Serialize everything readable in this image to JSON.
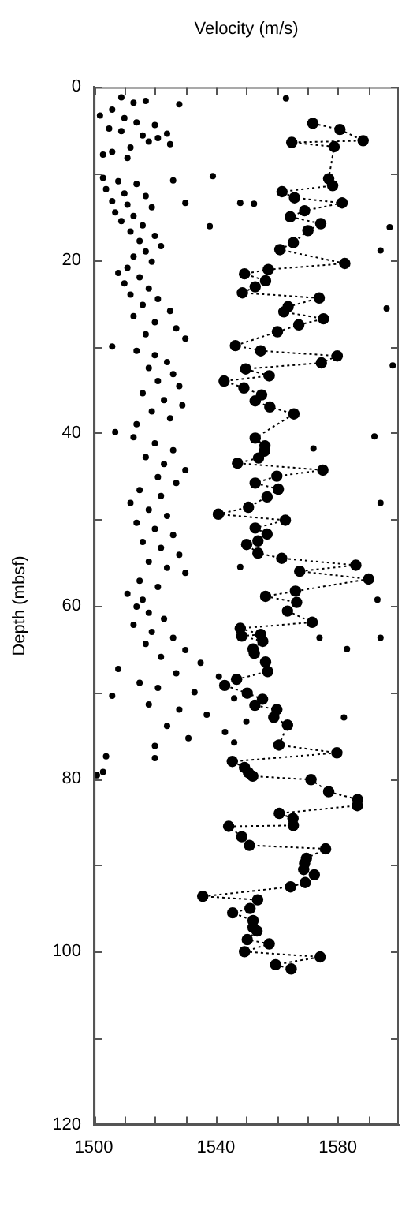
{
  "chart_data": {
    "type": "scatter",
    "xlabel": "Velocity (m/s)",
    "ylabel": "Depth (mbsf)",
    "xlim": [
      1500,
      1600
    ],
    "ylim": [
      120,
      0
    ],
    "xticks": [
      1500,
      {
        "value": 1510,
        "label": null
      },
      {
        "value": 1520,
        "label": null
      },
      {
        "value": 1530,
        "label": null
      },
      1540,
      {
        "value": 1550,
        "label": null
      },
      {
        "value": 1560,
        "label": null
      },
      {
        "value": 1570,
        "label": null
      },
      1580,
      {
        "value": 1590,
        "label": null
      }
    ],
    "yticks": [
      0,
      {
        "value": 10,
        "label": null
      },
      20,
      {
        "value": 30,
        "label": null
      },
      40,
      {
        "value": 50,
        "label": null
      },
      60,
      {
        "value": 70,
        "label": null
      },
      80,
      {
        "value": 90,
        "label": null
      },
      100,
      {
        "value": 110,
        "label": null
      },
      120
    ],
    "grid": false,
    "legend": false,
    "marker": "circle",
    "series": [
      {
        "color": "#000000",
        "x": [
          1509,
          1513,
          1517,
          1528,
          1506,
          1502,
          1510,
          1514,
          1520,
          1505,
          1509,
          1516,
          1521,
          1524,
          1518,
          1525,
          1512,
          1506,
          1503,
          1511,
          1503,
          1508,
          1514,
          1526,
          1504,
          1510,
          1517,
          1506,
          1511,
          1519,
          1507,
          1513,
          1509,
          1516,
          1512,
          1520,
          1515,
          1522,
          1517,
          1513,
          1519,
          1511,
          1508,
          1515,
          1510,
          1518,
          1512,
          1521,
          1516,
          1525,
          1513,
          1520,
          1527,
          1517,
          1530,
          1506,
          1514,
          1520,
          1524,
          1518,
          1526,
          1521,
          1528,
          1516,
          1523,
          1529,
          1519,
          1525,
          1514,
          1507,
          1513,
          1520,
          1526,
          1517,
          1523,
          1530,
          1521,
          1527,
          1515,
          1522,
          1512,
          1518,
          1524,
          1514,
          1520,
          1526,
          1516,
          1522,
          1528,
          1518,
          1524,
          1530,
          1515,
          1521,
          1511,
          1516,
          1514,
          1518,
          1523,
          1513,
          1519,
          1526,
          1517,
          1530,
          1522,
          1535,
          1508,
          1527,
          1541,
          1515,
          1521,
          1533,
          1506,
          1546,
          1518,
          1528,
          1537,
          1550,
          1524,
          1543,
          1531,
          1520,
          1546,
          1504,
          1520,
          1503,
          1501,
          1539,
          1530,
          1548,
          1552.5,
          1538,
          1597,
          1594,
          1563,
          1598,
          1596,
          1592,
          1572,
          1594,
          1548,
          1583,
          1594,
          1582,
          1593,
          1574
        ],
        "values": [
          1.2,
          1.8,
          1.6,
          2.0,
          2.6,
          3.3,
          3.6,
          4.1,
          4.4,
          4.8,
          5.1,
          5.6,
          5.9,
          5.4,
          6.3,
          6.6,
          7.0,
          7.5,
          7.8,
          8.2,
          10.5,
          10.9,
          11.2,
          10.8,
          11.8,
          12.3,
          12.6,
          13.2,
          13.6,
          13.9,
          14.5,
          14.9,
          15.5,
          16.0,
          16.7,
          17.2,
          17.8,
          18.4,
          19.0,
          19.6,
          20.2,
          20.9,
          21.5,
          22.0,
          22.7,
          23.3,
          24.0,
          24.5,
          25.2,
          25.9,
          26.5,
          27.2,
          27.9,
          28.6,
          29.1,
          30.0,
          30.5,
          31.0,
          31.8,
          32.5,
          33.2,
          34.0,
          34.6,
          35.4,
          36.2,
          36.8,
          37.5,
          38.3,
          39.0,
          39.9,
          40.5,
          41.2,
          42.0,
          42.8,
          43.6,
          44.3,
          45.1,
          45.8,
          46.6,
          47.3,
          48.1,
          48.9,
          49.6,
          50.4,
          51.1,
          51.8,
          52.6,
          53.3,
          54.1,
          54.9,
          55.6,
          56.2,
          57.1,
          57.8,
          58.6,
          59.3,
          60.1,
          60.8,
          61.5,
          62.2,
          63.0,
          63.7,
          64.4,
          65.1,
          65.9,
          66.6,
          67.3,
          67.8,
          68.2,
          68.9,
          69.5,
          70.0,
          70.4,
          70.7,
          71.4,
          72.0,
          72.6,
          73.4,
          73.9,
          74.6,
          75.3,
          76.2,
          75.8,
          77.4,
          77.6,
          79.2,
          79.6,
          10.3,
          13.4,
          13.4,
          13.5,
          16.1,
          16.2,
          18.9,
          1.3,
          32.2,
          25.6,
          40.4,
          41.8,
          48.1,
          55.5,
          65.0,
          63.7,
          72.9,
          59.3,
          63.7
        ]
      },
      {
        "type": "line",
        "color": "#000000",
        "line_style": "dotted",
        "x": [
          1571.8,
          1580.7,
          1588.3,
          1564.9,
          1578.8,
          1577.0,
          1578.3,
          1561.7,
          1565.8,
          1581.4,
          1569.1,
          1564.4,
          1574.4,
          1570.2,
          1565.4,
          1561.0,
          1582.3,
          1557.2,
          1549.4,
          1556.3,
          1552.9,
          1548.7,
          1573.9,
          1563.7,
          1562.3,
          1575.3,
          1567.2,
          1560.2,
          1546.4,
          1554.7,
          1579.8,
          1574.6,
          1549.8,
          1557.5,
          1542.7,
          1549.2,
          1555.0,
          1552.9,
          1557.7,
          1565.6,
          1552.9,
          1556.1,
          1555.9,
          1554.0,
          1547.1,
          1575.1,
          1560.0,
          1552.9,
          1560.5,
          1556.8,
          1550.7,
          1540.8,
          1562.8,
          1552.9,
          1556.8,
          1553.8,
          1550.1,
          1553.8,
          1561.6,
          1585.9,
          1567.5,
          1590.1,
          1566.1,
          1556.3,
          1566.5,
          1563.5,
          1571.6,
          1548.0,
          1554.7,
          1548.5,
          1555.4,
          1552.2,
          1552.6,
          1556.3,
          1557.0,
          1546.8,
          1542.9,
          1550.3,
          1555.3,
          1552.8,
          1560.0,
          1559.0,
          1563.5,
          1560.7,
          1579.7,
          1545.4,
          1549.4,
          1550.7,
          1552.1,
          1571.2,
          1577.0,
          1586.5,
          1586.4,
          1560.8,
          1565.3,
          1565.4,
          1544.2,
          1548.5,
          1551.0,
          1576.0,
          1569.7,
          1569.1,
          1568.8,
          1572.3,
          1569.3,
          1564.5,
          1535.7,
          1553.7,
          1551.2,
          1545.5,
          1552.2,
          1552.2,
          1553.5,
          1550.3,
          1557.5,
          1549.4,
          1574.2,
          1559.6,
          1564.7
        ],
        "values": [
          4.2,
          4.9,
          6.2,
          6.4,
          6.9,
          10.6,
          11.4,
          12.1,
          12.8,
          13.4,
          14.3,
          15.0,
          15.8,
          16.6,
          18.0,
          18.8,
          20.4,
          21.1,
          21.6,
          22.4,
          23.1,
          23.8,
          24.4,
          25.4,
          26.0,
          26.8,
          27.5,
          28.3,
          29.9,
          30.5,
          31.1,
          31.9,
          32.6,
          33.4,
          34.0,
          34.8,
          35.6,
          36.3,
          37.0,
          37.8,
          40.6,
          41.5,
          42.1,
          42.9,
          43.5,
          44.3,
          45.0,
          45.8,
          46.5,
          47.4,
          48.6,
          49.4,
          50.1,
          51.0,
          51.7,
          52.5,
          52.9,
          53.9,
          54.5,
          55.3,
          56.0,
          56.9,
          58.3,
          58.9,
          59.6,
          60.6,
          61.9,
          62.6,
          63.3,
          63.5,
          64.1,
          65.0,
          65.5,
          66.5,
          67.6,
          68.5,
          69.2,
          70.1,
          70.8,
          71.5,
          72.0,
          72.9,
          73.8,
          76.1,
          77.0,
          78.0,
          78.7,
          79.3,
          79.7,
          80.1,
          81.5,
          82.4,
          83.1,
          84.0,
          84.6,
          85.4,
          85.5,
          86.7,
          87.7,
          88.1,
          89.2,
          89.8,
          90.5,
          91.1,
          92.0,
          92.5,
          93.6,
          94.0,
          95.0,
          95.5,
          96.4,
          97.2,
          97.6,
          98.6,
          99.1,
          100.0,
          100.6,
          101.5,
          102.0
        ]
      }
    ]
  }
}
